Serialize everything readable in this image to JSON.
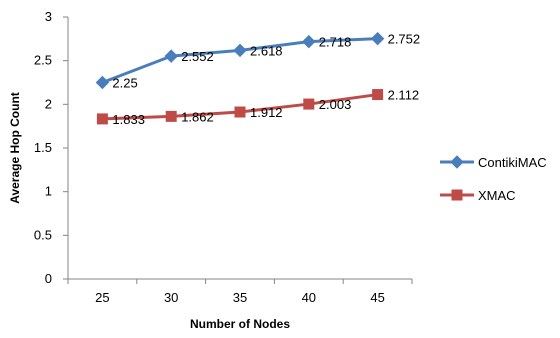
{
  "chart_data": {
    "type": "line",
    "title": "",
    "xlabel": "Number of Nodes",
    "ylabel": "Average Hop Count",
    "categories": [
      "25",
      "30",
      "35",
      "40",
      "45"
    ],
    "ylim": [
      0,
      3
    ],
    "yticks": [
      "0",
      "0.5",
      "1",
      "1.5",
      "2",
      "2.5",
      "3"
    ],
    "grid": false,
    "legend_position": "right",
    "series": [
      {
        "name": "ContikiMAC",
        "values": [
          2.25,
          2.552,
          2.618,
          2.718,
          2.752
        ],
        "labels": [
          "2.25",
          "2.552",
          "2.618",
          "2.718",
          "2.752"
        ],
        "color": "#4a7ebb",
        "marker": "diamond"
      },
      {
        "name": "XMAC",
        "values": [
          1.833,
          1.862,
          1.912,
          2.003,
          2.112
        ],
        "labels": [
          "1.833",
          "1.862",
          "1.912",
          "2.003",
          "2.112"
        ],
        "color": "#be4b48",
        "marker": "square"
      }
    ]
  }
}
